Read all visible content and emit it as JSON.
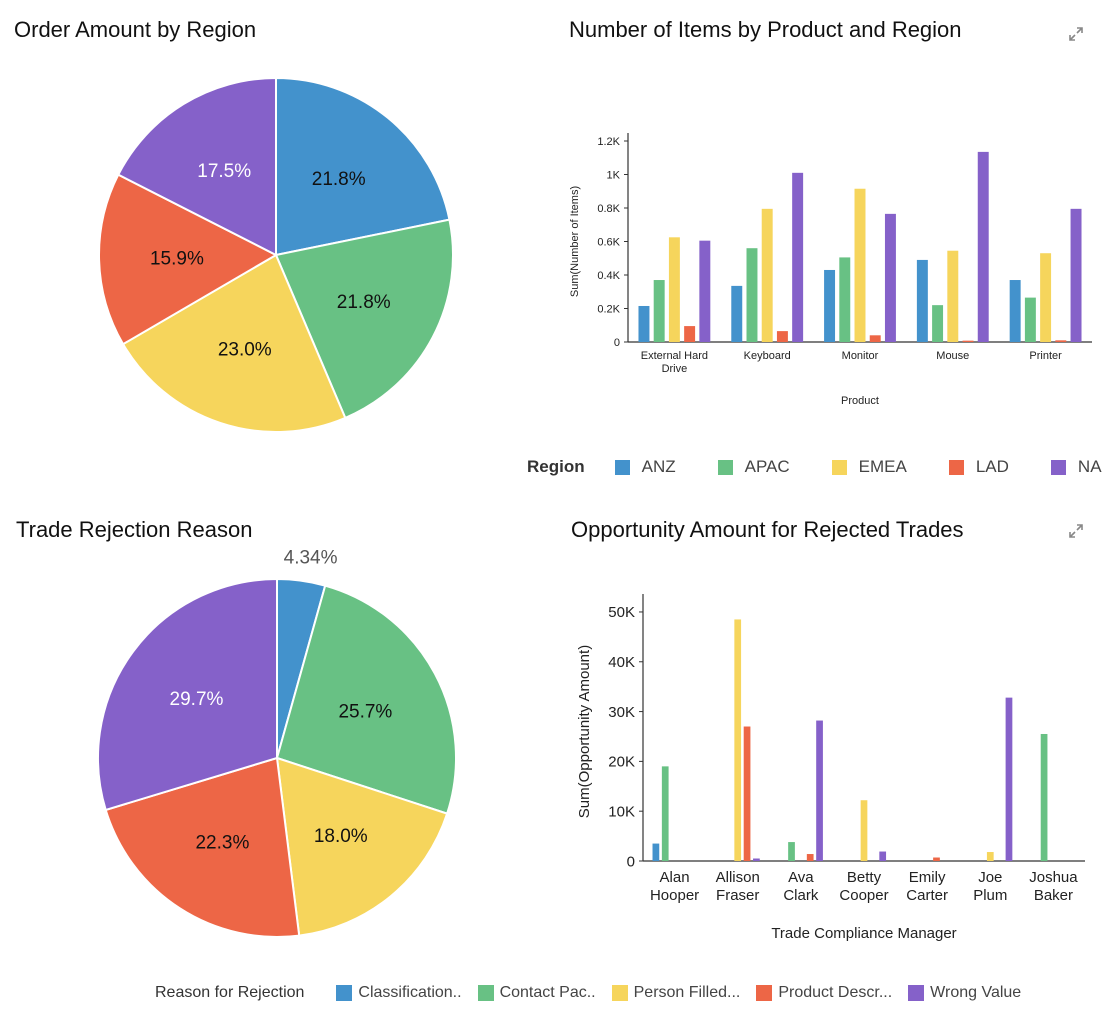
{
  "titles": {
    "order_amount": "Order Amount by Region",
    "items_by_product": "Number of Items by Product and Region",
    "trade_rejection": "Trade Rejection Reason",
    "opportunity_amount": "Opportunity Amount for Rejected Trades"
  },
  "icons": {
    "expand": "expand-icon"
  },
  "colors": {
    "blue": "#4392cc",
    "green": "#68c184",
    "yellow": "#f6d55c",
    "red": "#ed6646",
    "purple": "#8561c9"
  },
  "legend_region": {
    "title": "Region",
    "items": [
      {
        "label": "ANZ",
        "color": "#4392cc"
      },
      {
        "label": "APAC",
        "color": "#68c184"
      },
      {
        "label": "EMEA",
        "color": "#f6d55c"
      },
      {
        "label": "LAD",
        "color": "#ed6646"
      },
      {
        "label": "NA",
        "color": "#8561c9"
      }
    ]
  },
  "legend_reason": {
    "title": "Reason for Rejection",
    "items": [
      {
        "label": "Classification..",
        "color": "#4392cc"
      },
      {
        "label": "Contact  Pac..",
        "color": "#68c184"
      },
      {
        "label": "Person Filled...",
        "color": "#f6d55c"
      },
      {
        "label": "Product Descr...",
        "color": "#ed6646"
      },
      {
        "label": "Wrong Value",
        "color": "#8561c9"
      }
    ]
  },
  "chart_data": [
    {
      "id": "pie1",
      "type": "pie",
      "title": "Order Amount by Region",
      "slices": [
        {
          "name": "ANZ",
          "value": 21.8,
          "label": "21.8%",
          "color": "#4392cc",
          "label_color": "#111111"
        },
        {
          "name": "APAC",
          "value": 21.8,
          "label": "21.8%",
          "color": "#68c184",
          "label_color": "#111111"
        },
        {
          "name": "EMEA",
          "value": 23.0,
          "label": "23.0%",
          "color": "#f6d55c",
          "label_color": "#111111"
        },
        {
          "name": "LAD",
          "value": 15.9,
          "label": "15.9%",
          "color": "#ed6646",
          "label_color": "#111111"
        },
        {
          "name": "NA",
          "value": 17.5,
          "label": "17.5%",
          "color": "#8561c9",
          "label_color": "#ffffff"
        }
      ]
    },
    {
      "id": "bar1",
      "type": "bar",
      "title": "Number of Items by Product and Region",
      "categories": [
        "External Hard Drive",
        "Keyboard",
        "Monitor",
        "Mouse",
        "Printer"
      ],
      "xlabel": "Product",
      "ylabel": "Sum(Number of Items)",
      "ylim": [
        0,
        1200
      ],
      "yticks": [
        0,
        200,
        400,
        600,
        800,
        1000,
        1200
      ],
      "ytick_labels": [
        "0",
        "0.2K",
        "0.4K",
        "0.6K",
        "0.8K",
        "1K",
        "1.2K"
      ],
      "legend_title": "Region",
      "series": [
        {
          "name": "ANZ",
          "color": "#4392cc",
          "values": [
            215,
            335,
            430,
            490,
            370
          ]
        },
        {
          "name": "APAC",
          "color": "#68c184",
          "values": [
            370,
            560,
            505,
            220,
            265
          ]
        },
        {
          "name": "EMEA",
          "color": "#f6d55c",
          "values": [
            625,
            795,
            915,
            545,
            530
          ]
        },
        {
          "name": "LAD",
          "color": "#ed6646",
          "values": [
            95,
            65,
            40,
            8,
            10
          ]
        },
        {
          "name": "NA",
          "color": "#8561c9",
          "values": [
            605,
            1010,
            765,
            1135,
            795
          ]
        }
      ]
    },
    {
      "id": "pie2",
      "type": "pie",
      "title": "Trade Rejection Reason",
      "slices": [
        {
          "name": "Classification..",
          "value": 4.34,
          "label": "4.34%",
          "color": "#4392cc",
          "label_color": "#555555",
          "outside": true
        },
        {
          "name": "Contact  Pac..",
          "value": 25.7,
          "label": "25.7%",
          "color": "#68c184",
          "label_color": "#111111"
        },
        {
          "name": "Person Filled...",
          "value": 18.0,
          "label": "18.0%",
          "color": "#f6d55c",
          "label_color": "#111111"
        },
        {
          "name": "Product Descr...",
          "value": 22.3,
          "label": "22.3%",
          "color": "#ed6646",
          "label_color": "#111111"
        },
        {
          "name": "Wrong Value",
          "value": 29.7,
          "label": "29.7%",
          "color": "#8561c9",
          "label_color": "#ffffff"
        }
      ]
    },
    {
      "id": "bar2",
      "type": "bar",
      "title": "Opportunity Amount for Rejected Trades",
      "categories": [
        "Alan Hooper",
        "Allison Fraser",
        "Ava Clark",
        "Betty Cooper",
        "Emily Carter",
        "Joe Plum",
        "Joshua Baker"
      ],
      "xlabel": "Trade Compliance Manager",
      "ylabel": "Sum(Opportunity Amount)",
      "ylim": [
        0,
        52000
      ],
      "yticks": [
        0,
        10000,
        20000,
        30000,
        40000,
        50000
      ],
      "ytick_labels": [
        "0",
        "10K",
        "20K",
        "30K",
        "40K",
        "50K"
      ],
      "legend_title": "Reason for Rejection",
      "series": [
        {
          "name": "Classification..",
          "color": "#4392cc",
          "values": [
            3500,
            0,
            0,
            0,
            0,
            0,
            0
          ]
        },
        {
          "name": "Contact  Pac..",
          "color": "#68c184",
          "values": [
            19000,
            0,
            3800,
            0,
            0,
            0,
            25500
          ]
        },
        {
          "name": "Person Filled...",
          "color": "#f6d55c",
          "values": [
            0,
            48500,
            0,
            12200,
            0,
            1800,
            0
          ]
        },
        {
          "name": "Product Descr...",
          "color": "#ed6646",
          "values": [
            0,
            27000,
            1400,
            0,
            700,
            0,
            0
          ]
        },
        {
          "name": "Wrong Value",
          "color": "#8561c9",
          "values": [
            0,
            500,
            28200,
            1900,
            0,
            32800,
            0
          ]
        }
      ]
    }
  ]
}
